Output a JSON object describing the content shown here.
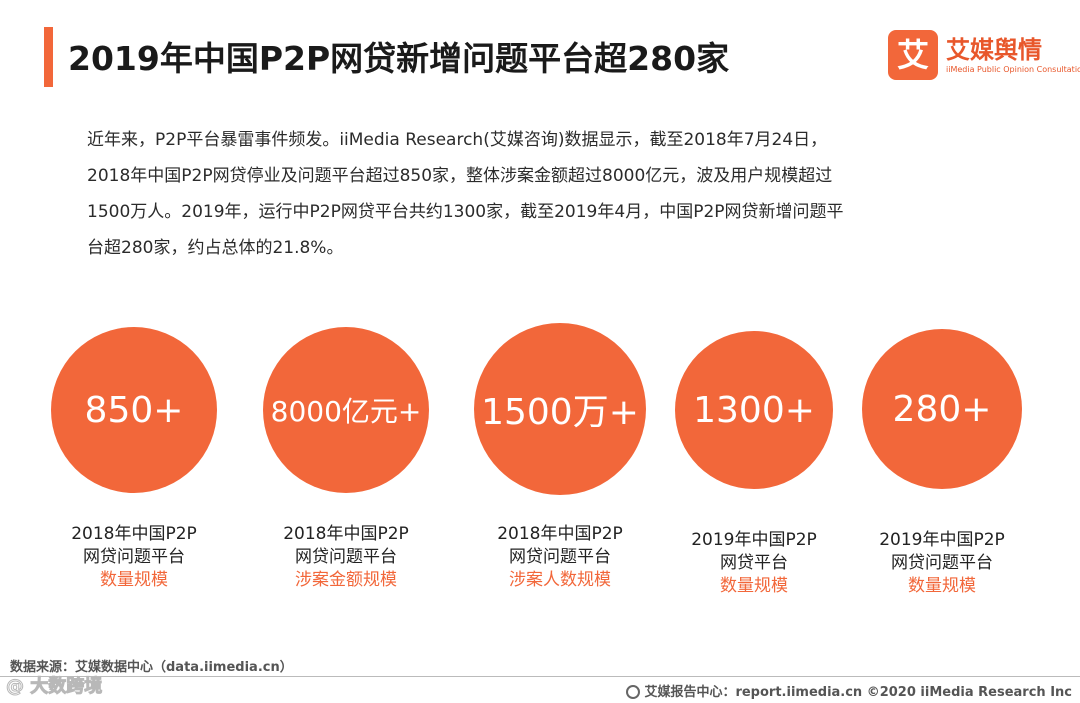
{
  "header": {
    "title": "2019年中国P2P网贷新增问题平台超280家"
  },
  "brand": {
    "logo_char": "艾",
    "name": "艾媒舆情",
    "subtitle": "iiMedia Public Opinion Consultation"
  },
  "intro": {
    "lines": [
      "近年来，P2P平台暴雷事件频发。iiMedia Research(艾媒咨询)数据显示，截至2018年7月24日，",
      "2018年中国P2P网贷停业及问题平台超过850家，整体涉案金额超过8000亿元，波及用户规模超过",
      "1500万人。2019年，运行中P2P网贷平台共约1300家，截至2019年4月，中国P2P网贷新增问题平",
      "台超280家，约占总体的21.8%。"
    ]
  },
  "stats": [
    {
      "value": "850+",
      "line1": "2018年中国P2P",
      "line2": "网贷问题平台",
      "accent": "数量规模"
    },
    {
      "value": "8000亿元+",
      "line1": "2018年中国P2P",
      "line2": "网贷问题平台",
      "accent": "涉案金额规模"
    },
    {
      "value": "1500万+",
      "line1": "2018年中国P2P",
      "line2": "网贷问题平台",
      "accent": "涉案人数规模"
    },
    {
      "value": "1300+",
      "line1": "2019年中国P2P",
      "line2": "网贷平台",
      "accent": "数量规模"
    },
    {
      "value": "280+",
      "line1": "2019年中国P2P",
      "line2": "网贷问题平台",
      "accent": "数量规模"
    }
  ],
  "footer": {
    "source": "数据来源：艾媒数据中心（data.iimedia.cn）",
    "report": "艾媒报告中心：report.iimedia.cn  ©2020  iiMedia Research  Inc",
    "watermark": "@ 大数跨境"
  },
  "colors": {
    "accent": "#f2673a",
    "text": "#222222"
  }
}
